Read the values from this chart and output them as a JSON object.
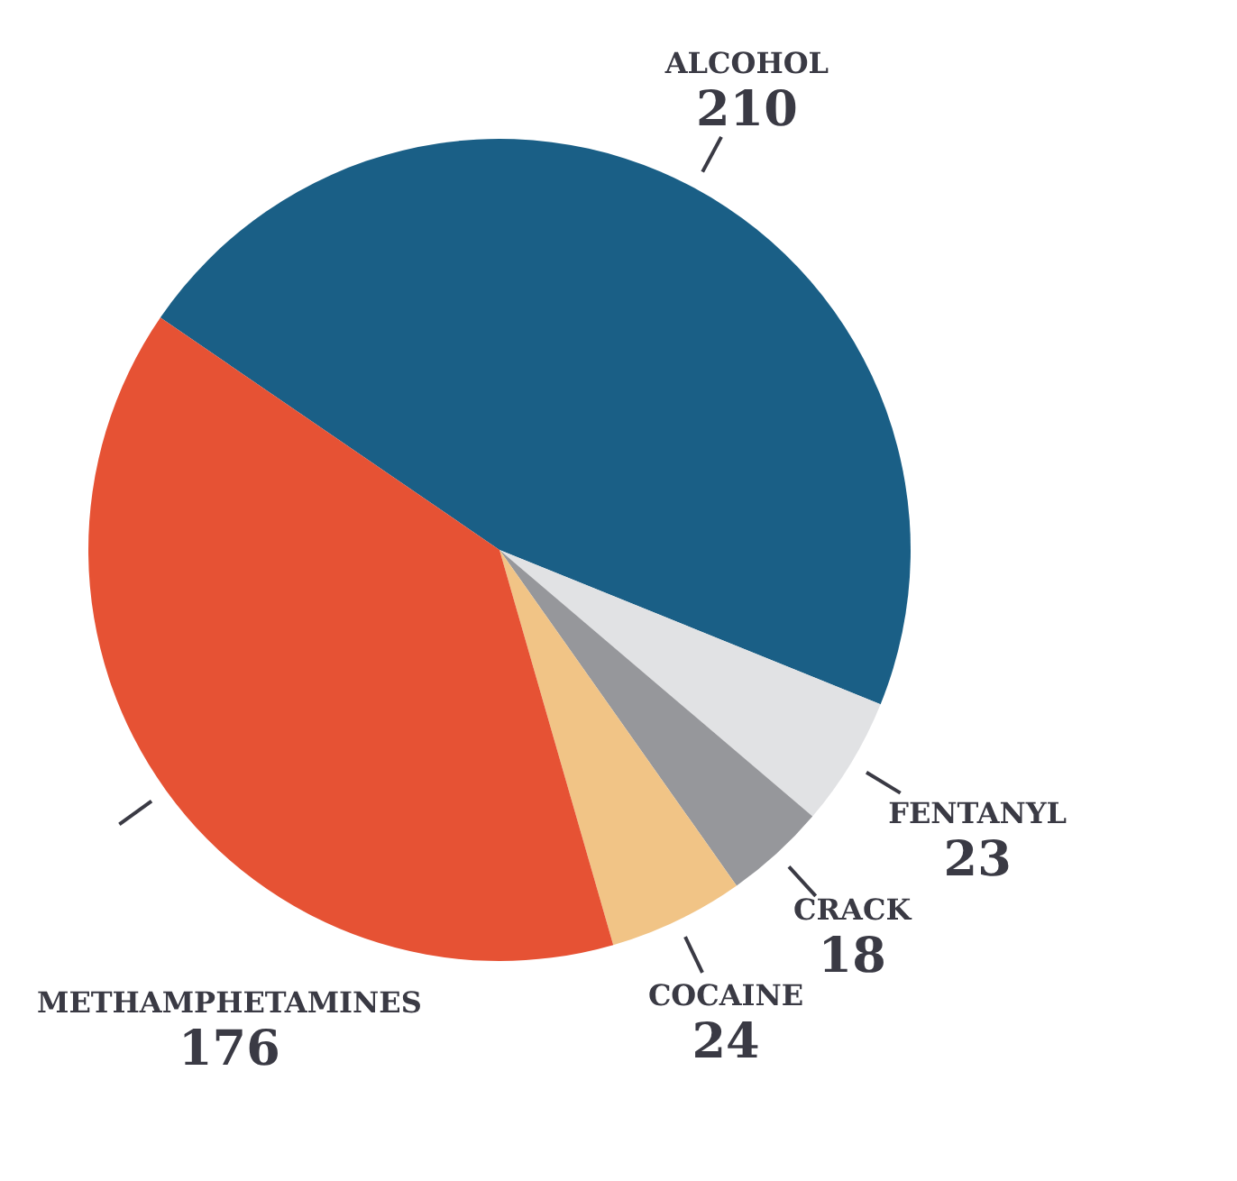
{
  "chart_data": {
    "type": "pie",
    "categories": [
      "ALCOHOL",
      "FENTANYL",
      "CRACK",
      "COCAINE",
      "METHAMPHETAMINES"
    ],
    "values": [
      210,
      23,
      18,
      24,
      176
    ],
    "colors": [
      "#1a5f86",
      "#e1e2e4",
      "#96979b",
      "#f1c486",
      "#e65234"
    ],
    "data_labels": true
  }
}
